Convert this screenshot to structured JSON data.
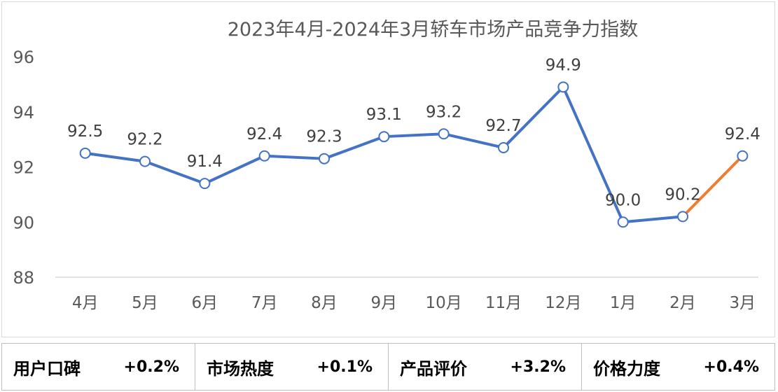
{
  "chart_data": {
    "type": "line",
    "title": "2023年4月-2024年3月轿车市场产品竞争力指数",
    "categories": [
      "4月",
      "5月",
      "6月",
      "7月",
      "8月",
      "9月",
      "10月",
      "11月",
      "12月",
      "1月",
      "2月",
      "3月"
    ],
    "series": [
      {
        "values": [
          92.5,
          92.2,
          91.4,
          92.4,
          92.3,
          93.1,
          93.2,
          92.7,
          94.9,
          90.0,
          90.2,
          92.4
        ]
      }
    ],
    "data_labels": [
      "92.5",
      "92.2",
      "91.4",
      "92.4",
      "92.3",
      "93.1",
      "93.2",
      "92.7",
      "94.9",
      "90.0",
      "90.2",
      "92.4"
    ],
    "ylim": [
      88,
      96
    ],
    "yticks": [
      "88",
      "90",
      "92",
      "94",
      "96"
    ],
    "highlight_segment": [
      10,
      11
    ],
    "line_color": "#4472C4",
    "highlight_color": "#ED7D31",
    "grid": false,
    "drop_lines": true
  },
  "metrics": [
    {
      "label": "用户口碑",
      "value": "+0.2%"
    },
    {
      "label": "市场热度",
      "value": "+0.1%"
    },
    {
      "label": "产品评价",
      "value": "+3.2%"
    },
    {
      "label": "价格力度",
      "value": "+0.4%"
    }
  ]
}
